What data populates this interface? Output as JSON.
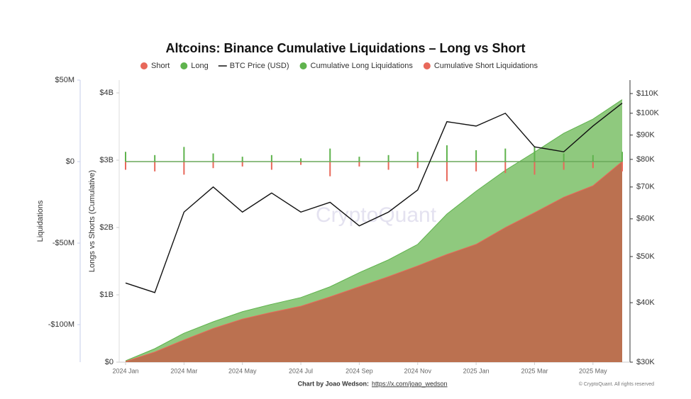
{
  "chart_data": {
    "type": "combo",
    "title": "Altcoins: Binance Cumulative Liquidations – Long vs Short",
    "y_label": "Liquidations",
    "y2_label": "Longs vs Shorts (Cumulative)",
    "watermark": "CryptoQuant",
    "credit": "Chart by Joao Wedson:",
    "credit_link": "https://x.com/joao_wedson",
    "copyright": "© CryptoQuant. All rights reserved",
    "x": [
      "2024-01",
      "2024-02",
      "2024-03",
      "2024-04",
      "2024-05",
      "2024-06",
      "2024-07",
      "2024-08",
      "2024-09",
      "2024-10",
      "2024-11",
      "2024-12",
      "2025-01",
      "2025-02",
      "2025-03",
      "2025-04",
      "2025-05",
      "2025-06"
    ],
    "xticks": [
      {
        "value": "2024-01",
        "label": "2024 Jan"
      },
      {
        "value": "2024-03",
        "label": "2024 Mar"
      },
      {
        "value": "2024-05",
        "label": "2024 May"
      },
      {
        "value": "2024-07",
        "label": "2024 Jul"
      },
      {
        "value": "2024-09",
        "label": "2024 Sep"
      },
      {
        "value": "2024-11",
        "label": "2024 Nov"
      },
      {
        "value": "2025-01",
        "label": "2025 Jan"
      },
      {
        "value": "2025-03",
        "label": "2025 Mar"
      },
      {
        "value": "2025-05",
        "label": "2025 May"
      }
    ],
    "ylim": [
      -123000000,
      50000000
    ],
    "yticks": [
      {
        "value": 50000000,
        "label": "$50M"
      },
      {
        "value": 0,
        "label": "$0"
      },
      {
        "value": -50000000,
        "label": "-$50M"
      },
      {
        "value": -100000000,
        "label": "-$100M"
      }
    ],
    "y2lim": [
      0,
      4190000000
    ],
    "y2ticks": [
      {
        "value": 4000000000,
        "label": "$4B"
      },
      {
        "value": 3000000000,
        "label": "$3B"
      },
      {
        "value": 2000000000,
        "label": "$2B"
      },
      {
        "value": 1000000000,
        "label": "$1B"
      },
      {
        "value": 0,
        "label": "$0"
      }
    ],
    "y3lim": [
      30000,
      117400
    ],
    "y3scale": "log",
    "y3ticks": [
      {
        "value": 110000,
        "label": "$110K"
      },
      {
        "value": 100000,
        "label": "$100K"
      },
      {
        "value": 90000,
        "label": "$90K"
      },
      {
        "value": 80000,
        "label": "$80K"
      },
      {
        "value": 70000,
        "label": "$70K"
      },
      {
        "value": 60000,
        "label": "$60K"
      },
      {
        "value": 50000,
        "label": "$50K"
      },
      {
        "value": 40000,
        "label": "$40K"
      },
      {
        "value": 30000,
        "label": "$30K"
      }
    ],
    "series": [
      {
        "name": "Short",
        "kind": "bar",
        "axis": "y",
        "color": "#e8685a",
        "values": [
          -5000000,
          -6000000,
          -8000000,
          -4000000,
          -3000000,
          -5000000,
          -2000000,
          -9000000,
          -3000000,
          -5000000,
          -4000000,
          -12000000,
          -6000000,
          -7000000,
          -8000000,
          -5000000,
          -4000000,
          -6000000
        ]
      },
      {
        "name": "Long",
        "kind": "bar",
        "axis": "y",
        "color": "#5fb34d",
        "values": [
          6000000,
          4000000,
          9000000,
          5000000,
          3000000,
          4000000,
          2000000,
          8000000,
          3000000,
          4000000,
          6000000,
          10000000,
          7000000,
          8000000,
          9000000,
          5000000,
          4000000,
          6000000
        ]
      },
      {
        "name": "BTC Price (USD)",
        "kind": "line",
        "axis": "y3",
        "color": "#111111",
        "values": [
          44000,
          42000,
          62000,
          70000,
          62000,
          68000,
          62000,
          65000,
          58000,
          62000,
          69000,
          96000,
          94000,
          100000,
          85000,
          83000,
          94000,
          105000
        ]
      },
      {
        "name": "Cumulative Long Liquidations",
        "kind": "area",
        "axis": "y2",
        "color": "#5fb34d",
        "fill": "#8fc97e",
        "values": [
          20000000,
          200000000,
          430000000,
          600000000,
          750000000,
          860000000,
          960000000,
          1120000000,
          1330000000,
          1520000000,
          1750000000,
          2200000000,
          2540000000,
          2850000000,
          3120000000,
          3400000000,
          3610000000,
          3900000000
        ]
      },
      {
        "name": "Cumulative Short Liquidations",
        "kind": "area",
        "axis": "y2",
        "color": "#e8685a",
        "fill": "#bb7150",
        "values": [
          10000000,
          150000000,
          330000000,
          500000000,
          640000000,
          740000000,
          830000000,
          970000000,
          1120000000,
          1270000000,
          1430000000,
          1600000000,
          1750000000,
          2000000000,
          2220000000,
          2450000000,
          2620000000,
          2980000000
        ]
      }
    ]
  }
}
